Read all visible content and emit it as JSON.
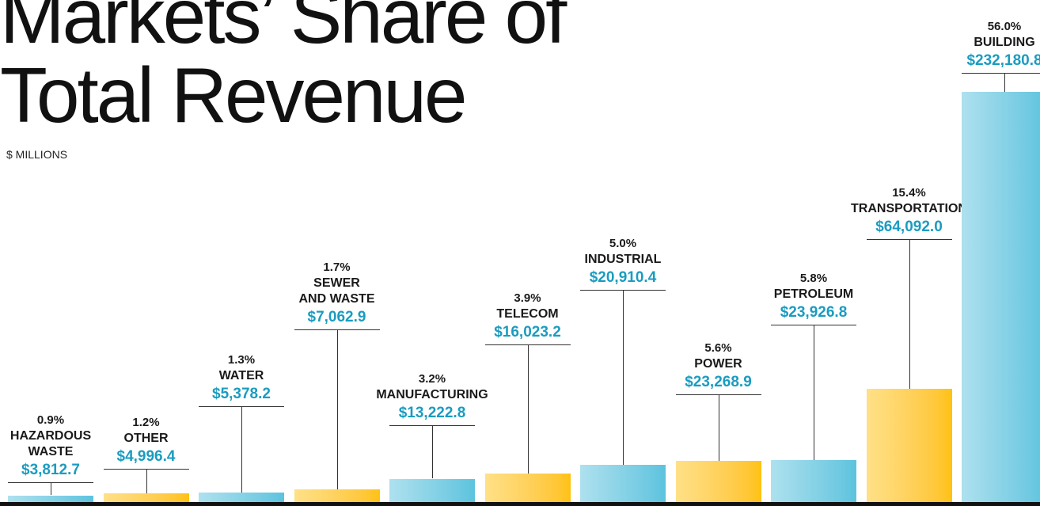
{
  "chart_data": {
    "type": "bar",
    "title": "Markets’ Share of Total Revenue",
    "subtitle": "$ MILLIONS",
    "categories": [
      "HAZARDOUS\nWASTE",
      "OTHER",
      "WATER",
      "SEWER\nAND WASTE",
      "MANUFACTURING",
      "TELECOM",
      "INDUSTRIAL",
      "POWER",
      "PETROLEUM",
      "TRANSPORTATION",
      "BUILDING"
    ],
    "values": [
      3812.7,
      4996.4,
      5378.2,
      7062.9,
      13222.8,
      16023.2,
      20910.4,
      23268.9,
      23926.8,
      64092.0,
      232180.8
    ],
    "value_labels": [
      "$3,812.7",
      "$4,996.4",
      "$5,378.2",
      "$7,062.9",
      "$13,222.8",
      "$16,023.2",
      "$20,910.4",
      "$23,268.9",
      "$23,926.8",
      "$64,092.0",
      "$232,180.8"
    ],
    "shares": [
      0.9,
      1.2,
      1.3,
      1.7,
      3.2,
      3.9,
      5.0,
      5.6,
      5.8,
      15.4,
      56.0
    ],
    "share_labels": [
      "0.9%",
      "1.2%",
      "1.3%",
      "1.7%",
      "3.2%",
      "3.9%",
      "5.0%",
      "5.6%",
      "5.8%",
      "15.4%",
      "56.0%"
    ],
    "colors": [
      "#5cc3de",
      "#ffc20e",
      "#5cc3de",
      "#ffc20e",
      "#5cc3de",
      "#ffc20e",
      "#5cc3de",
      "#ffc20e",
      "#5cc3de",
      "#ffc20e",
      "#5cc3de"
    ]
  }
}
